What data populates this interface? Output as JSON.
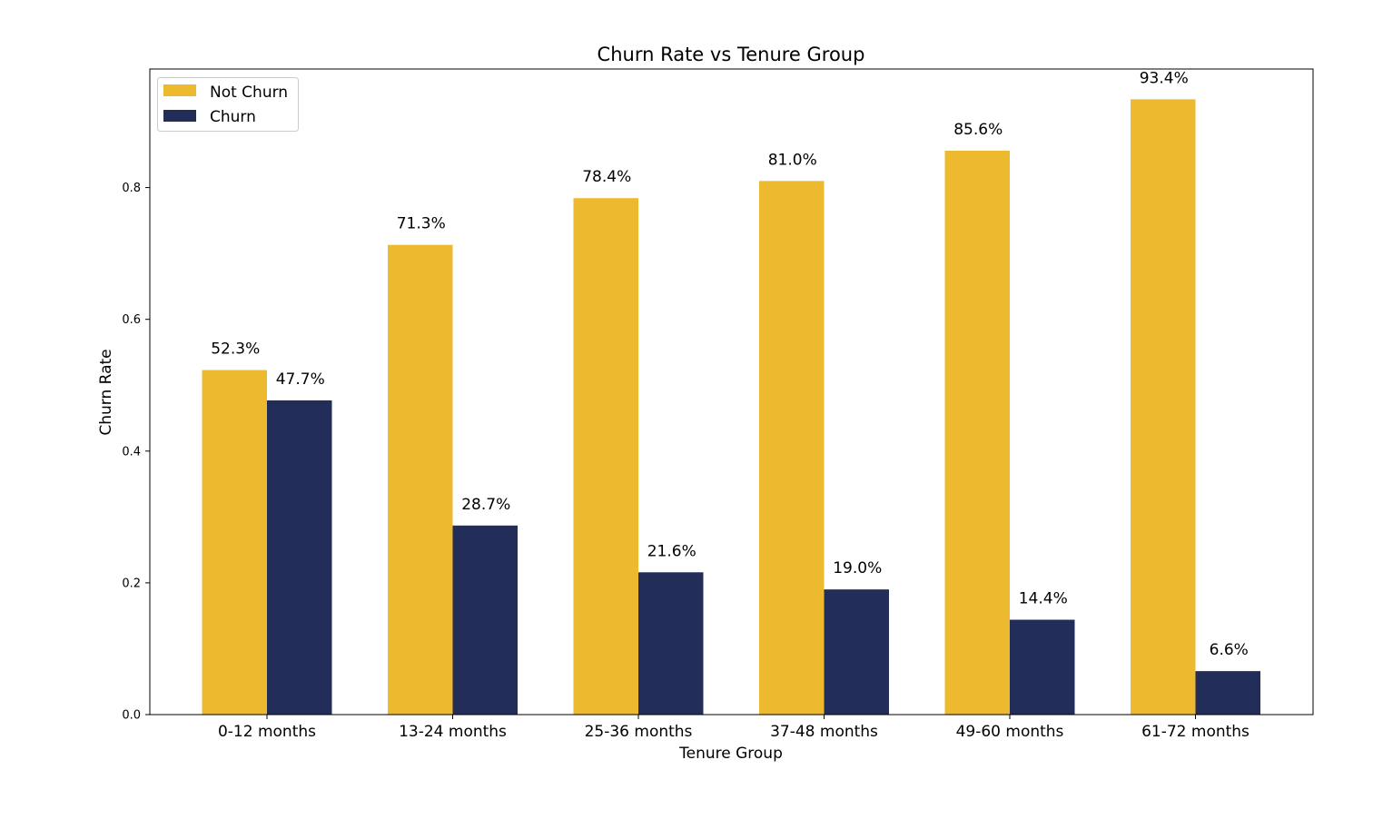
{
  "chart_data": {
    "type": "bar",
    "title": "Churn Rate vs Tenure Group",
    "xlabel": "Tenure Group",
    "ylabel": "Churn Rate",
    "categories": [
      "0-12 months",
      "13-24 months",
      "25-36 months",
      "37-48 months",
      "49-60 months",
      "61-72 months"
    ],
    "series": [
      {
        "name": "Not Churn",
        "color": "#EDB92F",
        "values": [
          0.523,
          0.713,
          0.784,
          0.81,
          0.856,
          0.934
        ],
        "labels": [
          "52.3%",
          "71.3%",
          "78.4%",
          "81.0%",
          "85.6%",
          "93.4%"
        ]
      },
      {
        "name": "Churn",
        "color": "#222E59",
        "values": [
          0.477,
          0.287,
          0.216,
          0.19,
          0.144,
          0.066
        ],
        "labels": [
          "47.7%",
          "28.7%",
          "21.6%",
          "19.0%",
          "14.4%",
          "6.6%"
        ]
      }
    ],
    "ylim": [
      0,
      0.98
    ],
    "yticks": [
      0.0,
      0.2,
      0.4,
      0.6,
      0.8
    ],
    "ytick_labels": [
      "0.0",
      "0.2",
      "0.4",
      "0.6",
      "0.8"
    ],
    "grid": false,
    "legend_position": "top-left"
  }
}
